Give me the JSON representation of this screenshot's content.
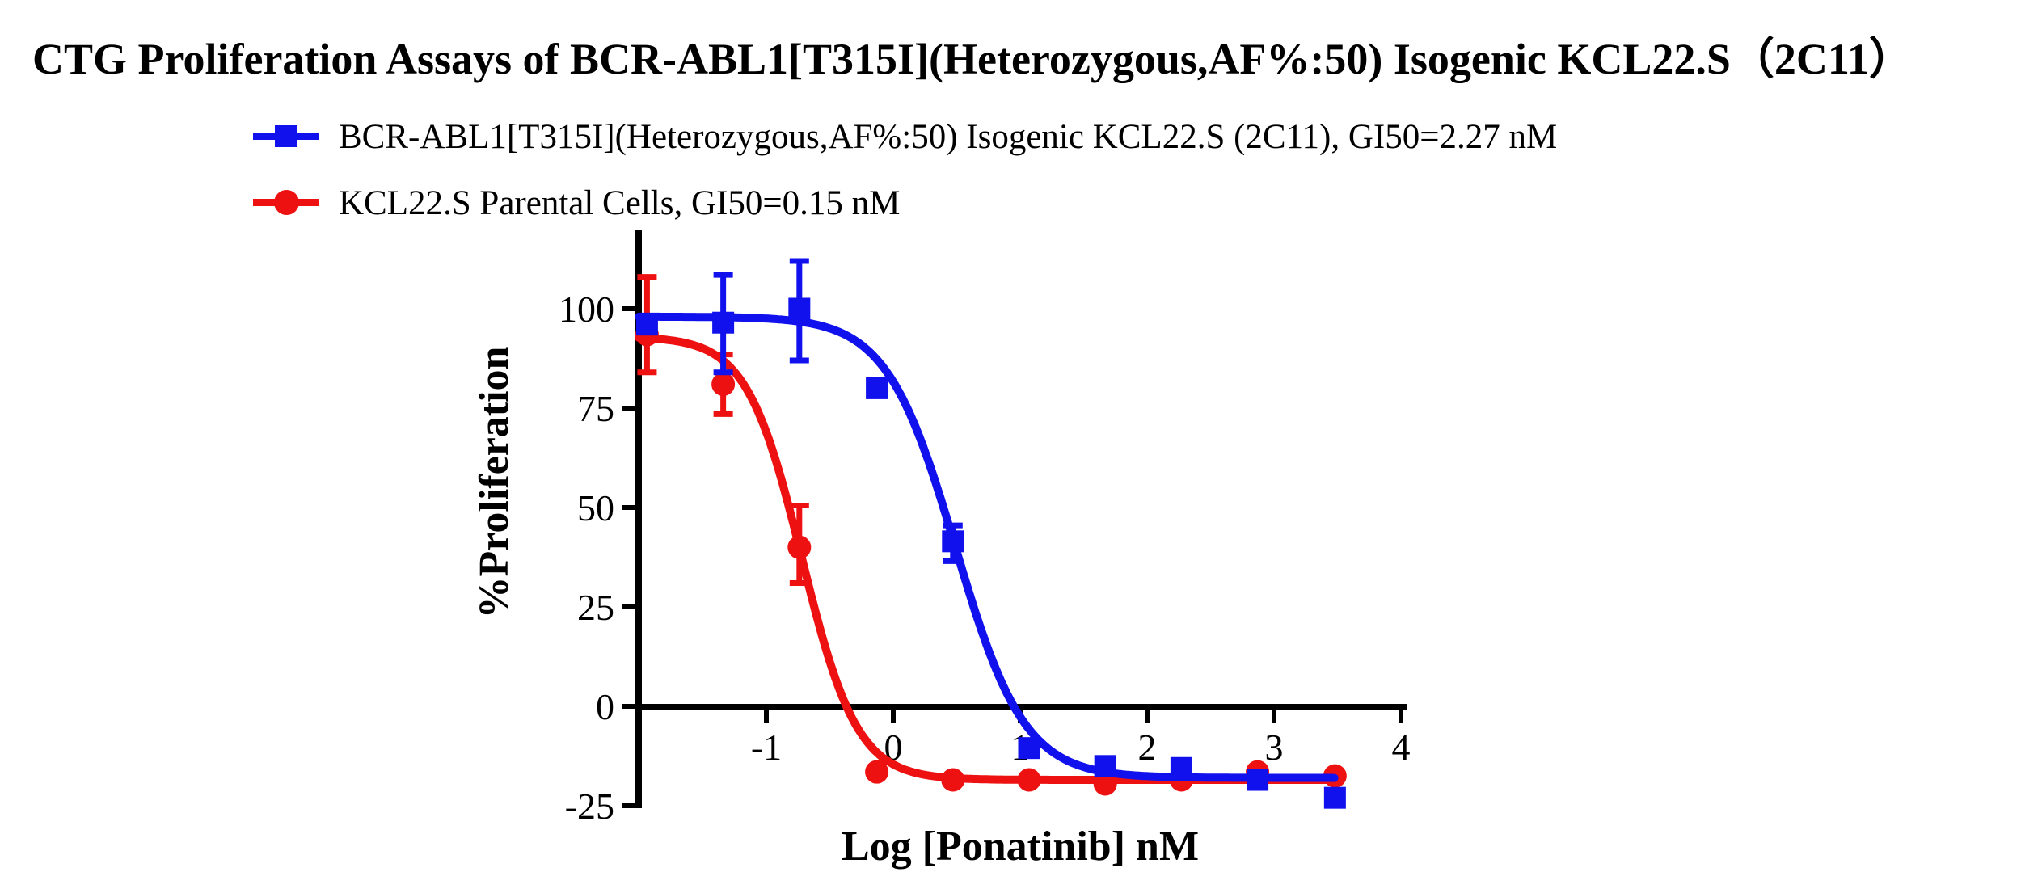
{
  "title": "CTG Proliferation Assays of BCR-ABL1[T315I](Heterozygous,AF%:50) Isogenic KCL22.S（2C11）",
  "colors": {
    "blue": "#1111EE",
    "red": "#EE1111",
    "axis": "#000000",
    "background": "#FFFFFF"
  },
  "legend": [
    {
      "label": "BCR-ABL1[T315I](Heterozygous,AF%:50) Isogenic KCL22.S (2C11), GI50=2.27 nM",
      "marker": "square",
      "color": "#1111EE"
    },
    {
      "label": "KCL22.S Parental Cells, GI50=0.15 nM",
      "marker": "circle",
      "color": "#EE1111"
    }
  ],
  "chart_data": {
    "type": "line",
    "title": "CTG Proliferation Assays of BCR-ABL1[T315I](Heterozygous,AF%:50) Isogenic KCL22.S（2C11）",
    "xlabel": "Log [Ponatinib] nM",
    "ylabel": "%Proliferation",
    "xlim": [
      -2,
      4
    ],
    "ylim": [
      -25,
      120
    ],
    "x_ticks": [
      -1,
      0,
      1,
      2,
      3,
      4
    ],
    "y_ticks": [
      100,
      75,
      50,
      25,
      0,
      -25
    ],
    "grid": false,
    "legend_position": "top-left",
    "series": [
      {
        "name": "BCR-ABL1[T315I](Heterozygous,AF%:50) Isogenic KCL22.S (2C11), GI50=2.27 nM",
        "gi50_label": "GI50=2.27 nM",
        "color": "#1111EE",
        "marker": "square",
        "x": [
          -1.94,
          -1.34,
          -0.74,
          -0.13,
          0.47,
          1.07,
          1.67,
          2.27,
          2.87,
          3.48
        ],
        "y": [
          96,
          96.5,
          100,
          80,
          41.5,
          -10.5,
          -15,
          -15.5,
          -18.5,
          -23
        ],
        "err_up": [
          0,
          12,
          12,
          0,
          4,
          0,
          0,
          0,
          0,
          0
        ],
        "err_down": [
          0,
          12.5,
          13,
          0,
          5,
          0,
          0,
          0,
          0,
          0
        ],
        "fit": {
          "top": 98,
          "bottom": -18,
          "log_ec50": 0.49,
          "hill": 1.6
        }
      },
      {
        "name": "KCL22.S Parental Cells, GI50=0.15 nM",
        "gi50_label": "GI50=0.15 nM",
        "color": "#EE1111",
        "marker": "circle",
        "x": [
          -1.94,
          -1.34,
          -0.74,
          -0.13,
          0.47,
          1.07,
          1.67,
          2.27,
          2.87,
          3.48
        ],
        "y": [
          93.5,
          81,
          40,
          -16.5,
          -18.5,
          -18.5,
          -19.5,
          -18.5,
          -16.5,
          -17.5
        ],
        "err_up": [
          14.5,
          7.5,
          10.5,
          0,
          0,
          0,
          0,
          0,
          0,
          0
        ],
        "err_down": [
          9.5,
          7.5,
          9,
          0,
          0,
          0,
          0,
          0,
          0,
          0
        ],
        "fit": {
          "top": 93,
          "bottom": -18.5,
          "log_ec50": -0.72,
          "hill": 2.0
        }
      }
    ]
  }
}
